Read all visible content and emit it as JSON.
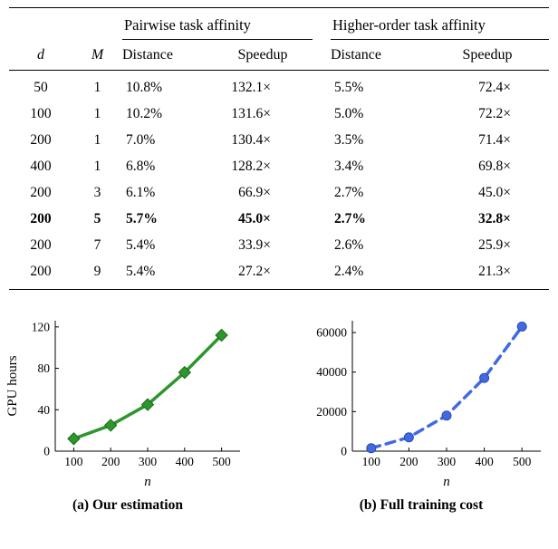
{
  "table": {
    "group_headers": [
      "Pairwise task affinity",
      "Higher-order task affinity"
    ],
    "col_headers": {
      "d": "d",
      "m": "M",
      "dist1": "Distance",
      "speed1": "Speedup",
      "dist2": "Distance",
      "speed2": "Speedup"
    },
    "rows": [
      [
        "50",
        "1",
        "10.8%",
        "132.1×",
        "5.5%",
        "72.4×"
      ],
      [
        "100",
        "1",
        "10.2%",
        "131.6×",
        "5.0%",
        "72.2×"
      ],
      [
        "200",
        "1",
        "7.0%",
        "130.4×",
        "3.5%",
        "71.4×"
      ],
      [
        "400",
        "1",
        "6.8%",
        "128.2×",
        "3.4%",
        "69.8×"
      ],
      [
        "200",
        "3",
        "6.1%",
        "66.9×",
        "2.7%",
        "45.0×"
      ],
      [
        "200",
        "5",
        "5.7%",
        "45.0×",
        "2.7%",
        "32.8×"
      ],
      [
        "200",
        "7",
        "5.4%",
        "33.9×",
        "2.6%",
        "25.9×"
      ],
      [
        "200",
        "9",
        "5.4%",
        "27.2×",
        "2.4%",
        "21.3×"
      ]
    ],
    "bold_row_index": 5
  },
  "chart_data": [
    {
      "type": "line",
      "caption": "(a) Our estimation",
      "xlabel": "n",
      "ylabel": "GPU hours",
      "x": [
        100,
        200,
        300,
        400,
        500
      ],
      "values": [
        12,
        25,
        45,
        76,
        112
      ],
      "xticks": [
        100,
        200,
        300,
        400,
        500
      ],
      "yticks": [
        0,
        40,
        80,
        120
      ],
      "xlim": [
        50,
        550
      ],
      "ylim": [
        0,
        126
      ],
      "color": "#2d962d",
      "marker_edge": "#1b6b1b",
      "line_style": "solid",
      "marker": "diamond"
    },
    {
      "type": "line",
      "caption": "(b) Full training cost",
      "xlabel": "n",
      "ylabel": "",
      "x": [
        100,
        200,
        300,
        400,
        500
      ],
      "values": [
        1500,
        7000,
        18000,
        37000,
        63000
      ],
      "xticks": [
        100,
        200,
        300,
        400,
        500
      ],
      "yticks": [
        0,
        20000,
        40000,
        60000
      ],
      "xlim": [
        50,
        550
      ],
      "ylim": [
        0,
        66000
      ],
      "color": "#4169e1",
      "marker_edge": "#2a4db3",
      "line_style": "dashed",
      "marker": "circle"
    }
  ]
}
